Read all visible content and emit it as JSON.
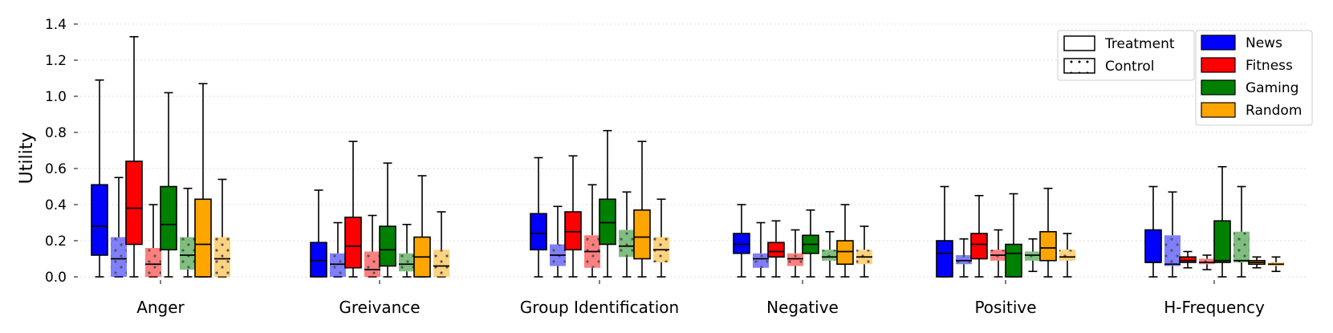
{
  "chart_data": {
    "type": "box",
    "ylabel": "Utility",
    "ylim": [
      0,
      1.4
    ],
    "yticks": [
      "0.0",
      "0.2",
      "0.4",
      "0.6",
      "0.8",
      "1.0",
      "1.2",
      "1.4"
    ],
    "ytick_values": [
      0,
      0.2,
      0.4,
      0.6,
      0.8,
      1.0,
      1.2,
      1.4
    ],
    "grid": "horizontal-dotted",
    "categories": [
      "Anger",
      "Greivance",
      "Group Identification",
      "Negative",
      "Positive",
      "H-Frequency"
    ],
    "groups": [
      {
        "name": "News",
        "color": "#0000ff"
      },
      {
        "name": "Fitness",
        "color": "#ff0000"
      },
      {
        "name": "Gaming",
        "color": "#008000"
      },
      {
        "name": "Random",
        "color": "#ffa500"
      }
    ],
    "conditions": [
      {
        "name": "Treatment",
        "style": "solid"
      },
      {
        "name": "Control",
        "style": "dotted, translucent"
      }
    ],
    "legend_location": "top-right",
    "boxes": {
      "Anger": {
        "News": {
          "Treatment": [
            0.0,
            0.12,
            0.28,
            0.51,
            1.09
          ],
          "Control": [
            0.0,
            0.0,
            0.1,
            0.22,
            0.55
          ]
        },
        "Fitness": {
          "Treatment": [
            0.0,
            0.18,
            0.38,
            0.64,
            1.33
          ],
          "Control": [
            0.0,
            0.0,
            0.07,
            0.16,
            0.4
          ]
        },
        "Gaming": {
          "Treatment": [
            0.0,
            0.15,
            0.29,
            0.5,
            1.02
          ],
          "Control": [
            0.0,
            0.04,
            0.12,
            0.22,
            0.49
          ]
        },
        "Random": {
          "Treatment": [
            0.0,
            0.0,
            0.18,
            0.43,
            1.07
          ],
          "Control": [
            0.0,
            0.0,
            0.1,
            0.22,
            0.54
          ]
        }
      },
      "Greivance": {
        "News": {
          "Treatment": [
            0.0,
            0.0,
            0.09,
            0.19,
            0.48
          ],
          "Control": [
            0.0,
            0.0,
            0.07,
            0.13,
            0.3
          ]
        },
        "Fitness": {
          "Treatment": [
            0.0,
            0.05,
            0.17,
            0.33,
            0.75
          ],
          "Control": [
            0.0,
            0.0,
            0.04,
            0.14,
            0.34
          ]
        },
        "Gaming": {
          "Treatment": [
            0.0,
            0.06,
            0.15,
            0.28,
            0.63
          ],
          "Control": [
            0.0,
            0.03,
            0.07,
            0.13,
            0.29
          ]
        },
        "Random": {
          "Treatment": [
            0.0,
            0.0,
            0.11,
            0.22,
            0.56
          ],
          "Control": [
            0.0,
            0.0,
            0.06,
            0.15,
            0.36
          ]
        }
      },
      "Group Identification": {
        "News": {
          "Treatment": [
            0.0,
            0.15,
            0.24,
            0.35,
            0.66
          ],
          "Control": [
            0.0,
            0.06,
            0.12,
            0.18,
            0.39
          ]
        },
        "Fitness": {
          "Treatment": [
            0.0,
            0.15,
            0.25,
            0.36,
            0.67
          ],
          "Control": [
            0.0,
            0.05,
            0.14,
            0.23,
            0.51
          ]
        },
        "Gaming": {
          "Treatment": [
            0.0,
            0.18,
            0.3,
            0.43,
            0.81
          ],
          "Control": [
            0.0,
            0.11,
            0.17,
            0.26,
            0.47
          ]
        },
        "Random": {
          "Treatment": [
            0.0,
            0.1,
            0.22,
            0.37,
            0.75
          ],
          "Control": [
            0.0,
            0.08,
            0.15,
            0.22,
            0.43
          ]
        }
      },
      "Negative": {
        "News": {
          "Treatment": [
            0.0,
            0.13,
            0.18,
            0.24,
            0.4
          ],
          "Control": [
            0.0,
            0.05,
            0.1,
            0.13,
            0.3
          ]
        },
        "Fitness": {
          "Treatment": [
            0.0,
            0.11,
            0.14,
            0.19,
            0.31
          ],
          "Control": [
            0.0,
            0.06,
            0.1,
            0.13,
            0.26
          ]
        },
        "Gaming": {
          "Treatment": [
            0.0,
            0.13,
            0.18,
            0.23,
            0.37
          ],
          "Control": [
            0.0,
            0.09,
            0.11,
            0.15,
            0.25
          ]
        },
        "Random": {
          "Treatment": [
            0.0,
            0.07,
            0.14,
            0.2,
            0.4
          ],
          "Control": [
            0.0,
            0.07,
            0.11,
            0.15,
            0.28
          ]
        }
      },
      "Positive": {
        "News": {
          "Treatment": [
            0.0,
            0.0,
            0.13,
            0.2,
            0.5
          ],
          "Control": [
            0.0,
            0.07,
            0.09,
            0.12,
            0.21
          ]
        },
        "Fitness": {
          "Treatment": [
            0.0,
            0.1,
            0.18,
            0.24,
            0.45
          ],
          "Control": [
            0.0,
            0.09,
            0.12,
            0.15,
            0.26
          ]
        },
        "Gaming": {
          "Treatment": [
            0.0,
            0.0,
            0.13,
            0.18,
            0.46
          ],
          "Control": [
            0.03,
            0.09,
            0.12,
            0.14,
            0.21
          ]
        },
        "Random": {
          "Treatment": [
            0.0,
            0.09,
            0.16,
            0.25,
            0.49
          ],
          "Control": [
            0.0,
            0.09,
            0.11,
            0.15,
            0.24
          ]
        }
      },
      "H-Frequency": {
        "News": {
          "Treatment": [
            0.0,
            0.08,
            0.08,
            0.26,
            0.5
          ],
          "Control": [
            0.0,
            0.06,
            0.07,
            0.23,
            0.47
          ]
        },
        "Fitness": {
          "Treatment": [
            0.05,
            0.08,
            0.09,
            0.11,
            0.14
          ],
          "Control": [
            0.04,
            0.07,
            0.08,
            0.1,
            0.12
          ]
        },
        "Gaming": {
          "Treatment": [
            0.0,
            0.08,
            0.09,
            0.31,
            0.61
          ],
          "Control": [
            0.0,
            0.08,
            0.09,
            0.25,
            0.5
          ]
        },
        "Random": {
          "Treatment": [
            0.05,
            0.07,
            0.08,
            0.09,
            0.11
          ],
          "Control": [
            0.03,
            0.06,
            0.07,
            0.08,
            0.11
          ]
        }
      }
    }
  }
}
